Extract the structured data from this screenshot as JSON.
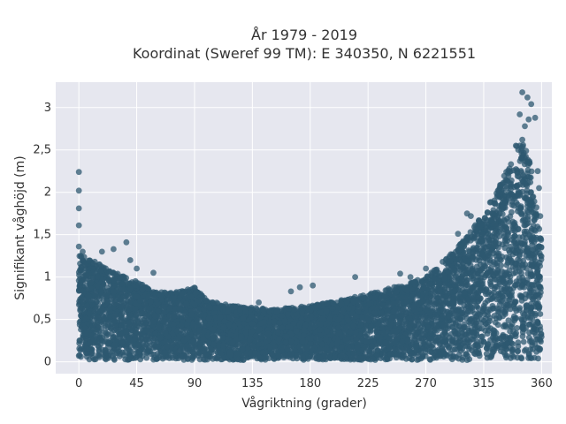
{
  "chart_data": {
    "type": "scatter",
    "title": [
      "År 1979 - 2019",
      "Koordinat (Sweref 99 TM): E 340350, N 6221551"
    ],
    "xlabel": "Vågriktning (grader)",
    "ylabel": "Signifikant våghöjd (m)",
    "xlim": [
      -18,
      368
    ],
    "ylim": [
      -0.14,
      3.3
    ],
    "xticks": [
      0,
      45,
      90,
      135,
      180,
      225,
      270,
      315,
      360
    ],
    "xtick_labels": [
      "0",
      "45",
      "90",
      "135",
      "180",
      "225",
      "270",
      "315",
      "360"
    ],
    "yticks": [
      0,
      0.5,
      1,
      1.5,
      2,
      2.5,
      3
    ],
    "ytick_labels": [
      "0",
      "0,5",
      "1",
      "1,5",
      "2",
      "2,5",
      "3"
    ],
    "grid": true,
    "legend": "none",
    "marker_color": "#2e5870",
    "background_color": "#e6e7ef",
    "envelope": {
      "description": "upper edge of dense point cloud, Hs vs direction",
      "x": [
        0,
        10,
        20,
        30,
        45,
        60,
        75,
        90,
        100,
        120,
        135,
        150,
        165,
        180,
        195,
        210,
        225,
        240,
        255,
        270,
        285,
        300,
        315,
        325,
        335,
        340,
        345,
        350,
        355,
        360
      ],
      "y_max": [
        1.28,
        1.2,
        1.12,
        1.05,
        0.95,
        0.82,
        0.82,
        0.88,
        0.72,
        0.66,
        0.64,
        0.62,
        0.64,
        0.66,
        0.7,
        0.75,
        0.8,
        0.86,
        0.92,
        1.0,
        1.2,
        1.45,
        1.75,
        2.0,
        2.35,
        2.55,
        2.6,
        2.45,
        2.0,
        1.4
      ],
      "y_min": [
        0.02,
        0.02,
        0.02,
        0.02,
        0.02,
        0.02,
        0.02,
        0.02,
        0.02,
        0.02,
        0.02,
        0.02,
        0.02,
        0.02,
        0.02,
        0.02,
        0.02,
        0.02,
        0.02,
        0.02,
        0.02,
        0.02,
        0.02,
        0.02,
        0.02,
        0.02,
        0.02,
        0.02,
        0.02,
        0.02
      ]
    },
    "outliers": [
      {
        "x": 0,
        "y": 2.24
      },
      {
        "x": 0,
        "y": 2.02
      },
      {
        "x": 0,
        "y": 1.81
      },
      {
        "x": 0,
        "y": 1.61
      },
      {
        "x": 0,
        "y": 1.36
      },
      {
        "x": 3,
        "y": 1.3
      },
      {
        "x": 18,
        "y": 1.3
      },
      {
        "x": 27,
        "y": 1.33
      },
      {
        "x": 37,
        "y": 1.41
      },
      {
        "x": 40,
        "y": 1.2
      },
      {
        "x": 45,
        "y": 1.1
      },
      {
        "x": 58,
        "y": 1.05
      },
      {
        "x": 140,
        "y": 0.7
      },
      {
        "x": 165,
        "y": 0.83
      },
      {
        "x": 172,
        "y": 0.88
      },
      {
        "x": 182,
        "y": 0.9
      },
      {
        "x": 215,
        "y": 1.0
      },
      {
        "x": 250,
        "y": 1.04
      },
      {
        "x": 258,
        "y": 1.0
      },
      {
        "x": 270,
        "y": 1.1
      },
      {
        "x": 283,
        "y": 1.18
      },
      {
        "x": 288,
        "y": 1.22
      },
      {
        "x": 295,
        "y": 1.51
      },
      {
        "x": 302,
        "y": 1.75
      },
      {
        "x": 305,
        "y": 1.72
      },
      {
        "x": 316,
        "y": 1.7
      },
      {
        "x": 320,
        "y": 1.88
      },
      {
        "x": 326,
        "y": 2.02
      },
      {
        "x": 333,
        "y": 2.14
      },
      {
        "x": 335,
        "y": 2.28
      },
      {
        "x": 340,
        "y": 2.55
      },
      {
        "x": 345,
        "y": 2.62
      },
      {
        "x": 347,
        "y": 2.78
      },
      {
        "x": 343,
        "y": 2.92
      },
      {
        "x": 350,
        "y": 2.86
      },
      {
        "x": 352,
        "y": 3.04
      },
      {
        "x": 345,
        "y": 3.18
      },
      {
        "x": 349,
        "y": 3.12
      },
      {
        "x": 355,
        "y": 2.88
      },
      {
        "x": 357,
        "y": 2.25
      },
      {
        "x": 358,
        "y": 2.05
      },
      {
        "x": 359,
        "y": 1.72
      }
    ]
  }
}
